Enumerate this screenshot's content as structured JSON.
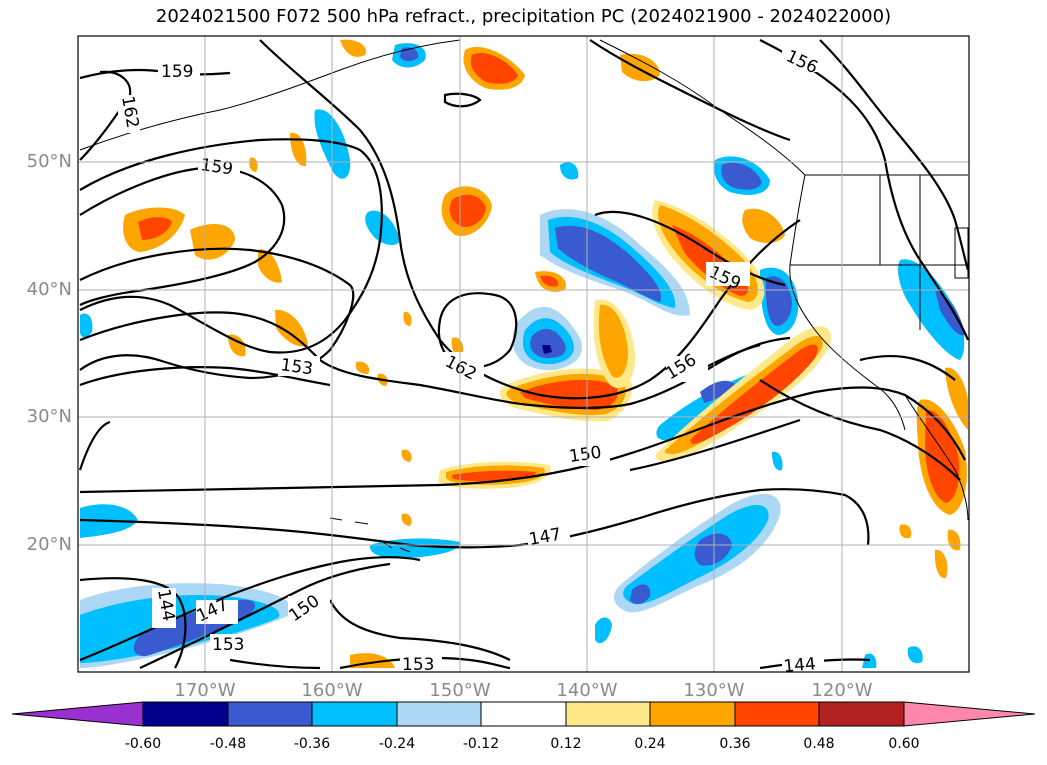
{
  "title": "2024021500 F072 500 hPa refract., precipitation PC (2024021900 - 2024022000)",
  "lon_labels": [
    "170°W",
    "160°W",
    "150°W",
    "140°W",
    "130°W",
    "120°W"
  ],
  "lat_labels": [
    "50°N",
    "40°N",
    "30°N",
    "20°N"
  ],
  "contour_labels": [
    "159",
    "162",
    "159",
    "156",
    "159",
    "162",
    "156",
    "153",
    "150",
    "147",
    "147",
    "144",
    "150",
    "153",
    "153",
    "144"
  ],
  "colorbar": {
    "ticks": [
      "-0.60",
      "-0.48",
      "-0.36",
      "-0.24",
      "-0.12",
      "0.12",
      "0.24",
      "0.36",
      "0.48",
      "0.60"
    ],
    "colors": [
      "#9b30d0",
      "#00008b",
      "#3a5bcf",
      "#00bfff",
      "#add8f5",
      "#ffffff",
      "#ffe88a",
      "#ffa500",
      "#ff4500",
      "#b22222",
      "#ff88aa"
    ]
  },
  "colors": {
    "neg_strong": "#3a5bcf",
    "neg_mid": "#00bfff",
    "neg_weak": "#add8f5",
    "pos_weak": "#ffe88a",
    "pos_mid": "#ffa500",
    "pos_strong": "#ff4500",
    "contour": "#000000",
    "grid": "#b0b0b0",
    "tick_label": "#8a8a8a"
  }
}
